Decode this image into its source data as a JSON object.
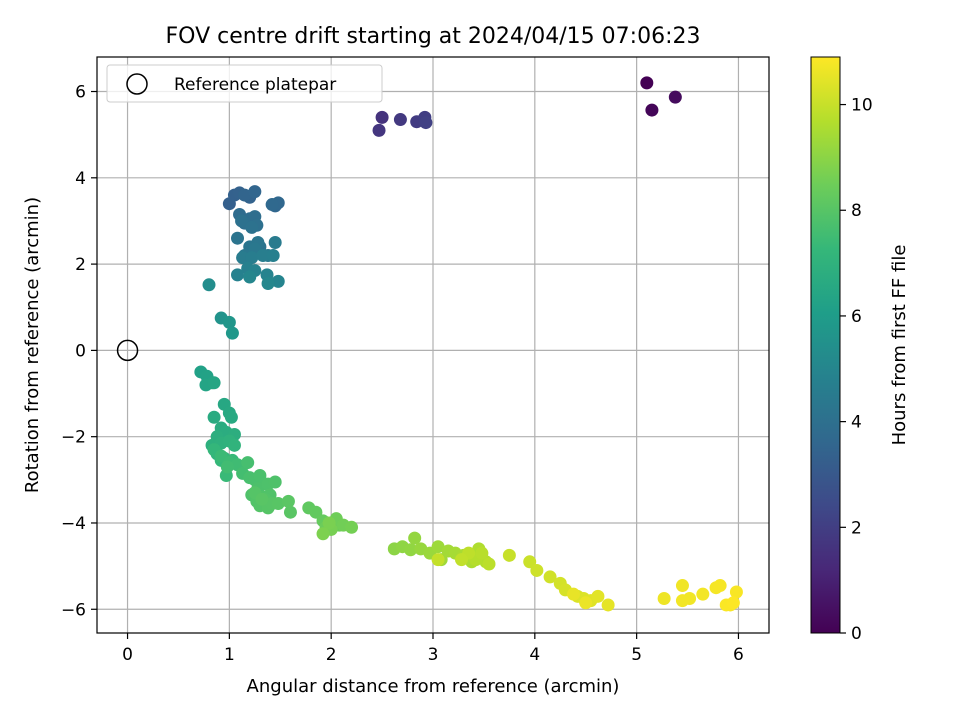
{
  "chart_data": {
    "type": "scatter",
    "title": "FOV centre drift starting at 2024/04/15 07:06:23",
    "xlabel": "Angular distance from reference (arcmin)",
    "ylabel": "Rotation from reference (arcmin)",
    "xlim": [
      -0.3,
      6.3
    ],
    "ylim": [
      -6.55,
      6.8
    ],
    "xticks": [
      0,
      1,
      2,
      3,
      4,
      5,
      6
    ],
    "yticks": [
      -6,
      -4,
      -2,
      0,
      2,
      4,
      6
    ],
    "grid": true,
    "legend": {
      "entries": [
        "Reference platepar"
      ],
      "placement": "upper-left"
    },
    "reference_point": {
      "x": 0,
      "y": 0,
      "label": "Reference platepar"
    },
    "colorbar": {
      "label": "Hours from first FF file",
      "range": [
        0,
        10.9
      ],
      "ticks": [
        0,
        2,
        4,
        6,
        8,
        10
      ],
      "colormap": "viridis"
    },
    "series": [
      {
        "x": [
          5.1,
          5.15,
          5.38,
          2.5,
          2.47,
          2.68,
          2.84,
          2.92,
          2.93,
          1.0,
          1.05,
          1.1,
          1.2,
          1.15,
          1.25,
          1.45,
          1.48,
          1.42,
          1.1,
          1.2,
          1.25,
          1.15,
          1.27,
          1.12,
          1.22,
          1.3,
          1.08,
          1.2,
          1.28,
          1.15,
          1.25,
          1.38,
          1.45,
          1.13,
          1.22,
          1.33,
          1.43,
          1.18,
          1.08,
          1.25,
          1.37,
          1.48,
          1.2,
          1.38,
          0.8,
          0.92,
          1.0,
          1.03,
          0.72,
          0.78,
          0.83,
          0.77,
          0.85,
          0.95,
          1.0,
          1.02,
          0.85,
          0.92,
          0.97,
          1.05,
          0.88,
          0.83,
          0.92,
          1.0,
          1.05,
          0.88,
          0.95,
          0.85,
          0.92,
          1.03,
          0.97,
          0.92,
          1.0,
          1.08,
          0.98,
          1.13,
          1.18,
          1.2,
          1.25,
          1.3,
          1.35,
          1.28,
          1.38,
          1.45,
          1.22,
          1.33,
          1.4,
          1.27,
          1.35,
          1.3,
          1.25,
          1.38,
          1.42,
          1.48,
          1.32,
          1.6,
          1.58,
          1.78,
          1.85,
          1.92,
          2.0,
          2.08,
          1.95,
          2.05,
          2.12,
          2.2,
          2.0,
          1.98,
          1.92,
          2.62,
          2.7,
          2.78,
          2.82,
          2.88,
          2.97,
          3.05,
          3.08,
          3.15,
          3.22,
          3.3,
          3.38,
          3.45,
          3.52,
          3.42,
          3.48,
          3.55,
          3.35,
          3.28,
          3.05,
          3.75,
          3.95,
          4.02,
          4.15,
          4.25,
          4.3,
          4.42,
          4.48,
          4.55,
          4.62,
          4.72,
          4.38,
          4.5,
          5.27,
          5.45,
          5.52,
          5.45,
          5.65,
          5.78,
          5.82,
          5.92,
          5.98,
          5.88,
          5.95
        ],
        "y": [
          6.2,
          5.57,
          5.87,
          5.4,
          5.1,
          5.35,
          5.3,
          5.4,
          5.28,
          3.4,
          3.6,
          3.65,
          3.55,
          3.6,
          3.68,
          3.35,
          3.42,
          3.38,
          3.15,
          3.05,
          3.1,
          2.95,
          2.9,
          3.0,
          2.85,
          2.4,
          2.6,
          2.4,
          2.5,
          2.2,
          2.35,
          2.2,
          2.5,
          2.15,
          2.15,
          2.2,
          2.2,
          1.9,
          1.75,
          1.85,
          1.75,
          1.6,
          1.7,
          1.55,
          1.52,
          0.75,
          0.65,
          0.4,
          -0.5,
          -0.6,
          -0.75,
          -0.8,
          -0.75,
          -1.25,
          -1.45,
          -1.55,
          -1.55,
          -1.8,
          -1.9,
          -1.95,
          -2.0,
          -2.2,
          -2.15,
          -2.1,
          -2.2,
          -2.4,
          -2.5,
          -2.3,
          -2.55,
          -2.55,
          -2.9,
          -2.45,
          -2.6,
          -2.65,
          -2.7,
          -2.85,
          -2.6,
          -2.95,
          -3.0,
          -2.9,
          -3.1,
          -3.2,
          -3.1,
          -3.05,
          -3.35,
          -3.4,
          -3.35,
          -3.5,
          -3.45,
          -3.6,
          -3.3,
          -3.65,
          -3.55,
          -3.55,
          -3.45,
          -3.75,
          -3.5,
          -3.65,
          -3.75,
          -3.95,
          -4.05,
          -4.05,
          -4.1,
          -3.9,
          -4.05,
          -4.1,
          -4.15,
          -4.0,
          -4.25,
          -4.6,
          -4.55,
          -4.62,
          -4.35,
          -4.6,
          -4.7,
          -4.55,
          -4.85,
          -4.65,
          -4.7,
          -4.75,
          -4.9,
          -4.6,
          -4.9,
          -4.85,
          -4.7,
          -4.95,
          -4.7,
          -4.85,
          -4.85,
          -4.75,
          -4.9,
          -5.1,
          -5.25,
          -5.4,
          -5.55,
          -5.7,
          -5.75,
          -5.8,
          -5.7,
          -5.9,
          -5.65,
          -5.85,
          -5.75,
          -5.45,
          -5.75,
          -5.8,
          -5.65,
          -5.5,
          -5.45,
          -5.9,
          -5.6,
          -5.9,
          -5.85
        ],
        "hours": [
          0.0,
          0.15,
          0.3,
          1.6,
          1.7,
          1.8,
          1.9,
          2.0,
          2.1,
          3.3,
          3.35,
          3.4,
          3.45,
          3.5,
          3.55,
          3.6,
          3.65,
          3.7,
          3.8,
          3.85,
          3.9,
          3.95,
          4.0,
          4.05,
          4.1,
          4.15,
          4.2,
          4.25,
          4.3,
          4.35,
          4.4,
          4.45,
          4.5,
          4.55,
          4.6,
          4.65,
          4.7,
          4.75,
          4.8,
          4.85,
          4.9,
          4.95,
          5.0,
          5.05,
          5.3,
          5.6,
          5.7,
          5.8,
          6.2,
          6.25,
          6.3,
          6.35,
          6.4,
          6.5,
          6.55,
          6.6,
          6.65,
          6.7,
          6.75,
          6.8,
          6.85,
          6.9,
          6.95,
          7.0,
          7.05,
          7.1,
          7.15,
          7.2,
          7.25,
          7.3,
          7.35,
          7.4,
          7.45,
          7.5,
          7.55,
          7.6,
          7.65,
          7.7,
          7.72,
          7.74,
          7.76,
          7.78,
          7.8,
          7.82,
          7.84,
          7.86,
          7.88,
          7.9,
          7.92,
          7.94,
          7.96,
          7.98,
          8.0,
          8.02,
          8.04,
          8.06,
          8.08,
          8.2,
          8.25,
          8.3,
          8.35,
          8.4,
          8.45,
          8.5,
          8.55,
          8.6,
          8.65,
          8.7,
          8.75,
          9.0,
          9.05,
          9.1,
          9.15,
          9.2,
          9.25,
          9.3,
          9.35,
          9.4,
          9.45,
          9.5,
          9.55,
          9.6,
          9.65,
          9.7,
          9.75,
          9.8,
          9.85,
          9.9,
          9.95,
          10.0,
          10.05,
          10.1,
          10.15,
          10.2,
          10.25,
          10.3,
          10.35,
          10.4,
          10.45,
          10.5,
          10.55,
          10.6,
          10.65,
          10.68,
          10.7,
          10.72,
          10.74,
          10.76,
          10.78,
          10.8,
          10.82,
          10.85,
          10.88
        ]
      }
    ]
  }
}
